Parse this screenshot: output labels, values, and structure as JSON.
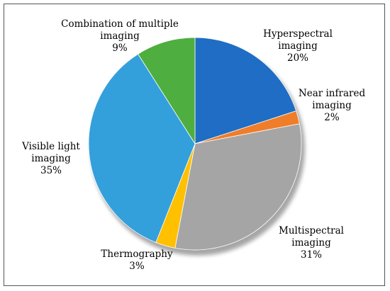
{
  "chart_data": {
    "type": "pie",
    "title": "",
    "slices": [
      {
        "label_lines": [
          "Hyperspectral",
          "imaging",
          "20%"
        ],
        "value": 20,
        "color": "#1F6DC4"
      },
      {
        "label_lines": [
          "Near infrared",
          "imaging",
          "2%"
        ],
        "value": 2,
        "color": "#F07D2A"
      },
      {
        "label_lines": [
          "Multispectral",
          "imaging",
          "31%"
        ],
        "value": 31,
        "color": "#A5A5A5"
      },
      {
        "label_lines": [
          "Thermography",
          "3%"
        ],
        "value": 3,
        "color": "#FFC000"
      },
      {
        "label_lines": [
          "Visible light",
          "imaging",
          "35%"
        ],
        "value": 35,
        "color": "#33A0DC"
      },
      {
        "label_lines": [
          "Combination of multiple",
          "imaging",
          "9%"
        ],
        "value": 9,
        "color": "#4EAE3F"
      }
    ],
    "start_angle_deg": 0,
    "direction": "clockwise",
    "style": "3d-shadow",
    "legend": "none",
    "labels": "outside"
  }
}
